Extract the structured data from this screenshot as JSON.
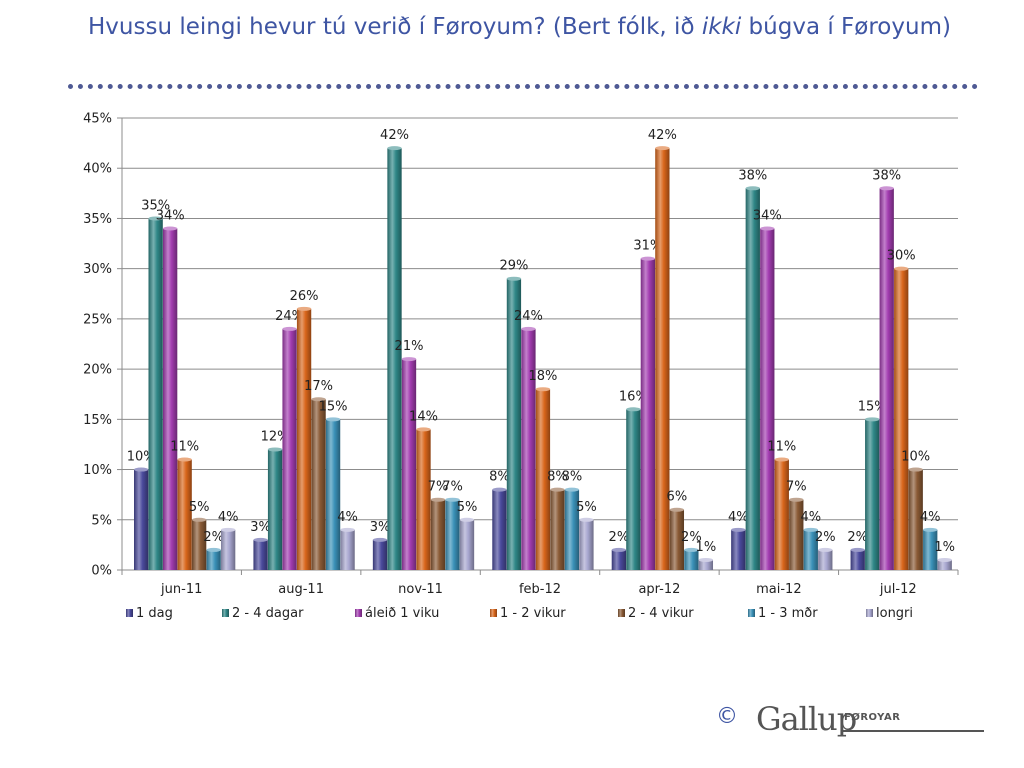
{
  "title": {
    "before": "Hvussu leingi hevur tú verið í Føroyum? (Bert fólk, ið ",
    "emph": "ikki",
    "after": " búgva í Føroyum)"
  },
  "logo": {
    "copyright": "©",
    "brand": "Gallup",
    "sub": "FØROYAR"
  },
  "chart_data": {
    "type": "bar",
    "categories": [
      "jun-11",
      "aug-11",
      "nov-11",
      "feb-12",
      "apr-12",
      "mai-12",
      "jul-12"
    ],
    "ylim": [
      0,
      45
    ],
    "yticks": [
      0,
      5,
      10,
      15,
      20,
      25,
      30,
      35,
      40,
      45
    ],
    "ytick_labels": [
      "0%",
      "5%",
      "10%",
      "15%",
      "20%",
      "25%",
      "30%",
      "35%",
      "40%",
      "45%"
    ],
    "y_unit": "%",
    "grid": true,
    "legend_position": "bottom",
    "series": [
      {
        "name": "1 dag",
        "color": "#4a4a9c",
        "values": [
          10,
          3,
          3,
          8,
          2,
          4,
          2
        ]
      },
      {
        "name": "2 - 4 dagar",
        "color": "#2f8787",
        "values": [
          35,
          12,
          42,
          29,
          16,
          38,
          15
        ]
      },
      {
        "name": "áleið 1 viku",
        "color": "#a23cb0",
        "values": [
          34,
          24,
          21,
          24,
          31,
          34,
          38
        ]
      },
      {
        "name": "1 - 2 vikur",
        "color": "#d9661b",
        "values": [
          11,
          26,
          14,
          18,
          42,
          11,
          30
        ]
      },
      {
        "name": "2 - 4 vikur",
        "color": "#8a5a35",
        "values": [
          5,
          17,
          7,
          8,
          6,
          7,
          10
        ]
      },
      {
        "name": "1 - 3 mðr",
        "color": "#3a91b8",
        "values": [
          2,
          15,
          7,
          8,
          2,
          4,
          4
        ]
      },
      {
        "name": "longri",
        "color": "#a7a6cf",
        "values": [
          4,
          4,
          5,
          5,
          1,
          2,
          1
        ]
      }
    ]
  }
}
